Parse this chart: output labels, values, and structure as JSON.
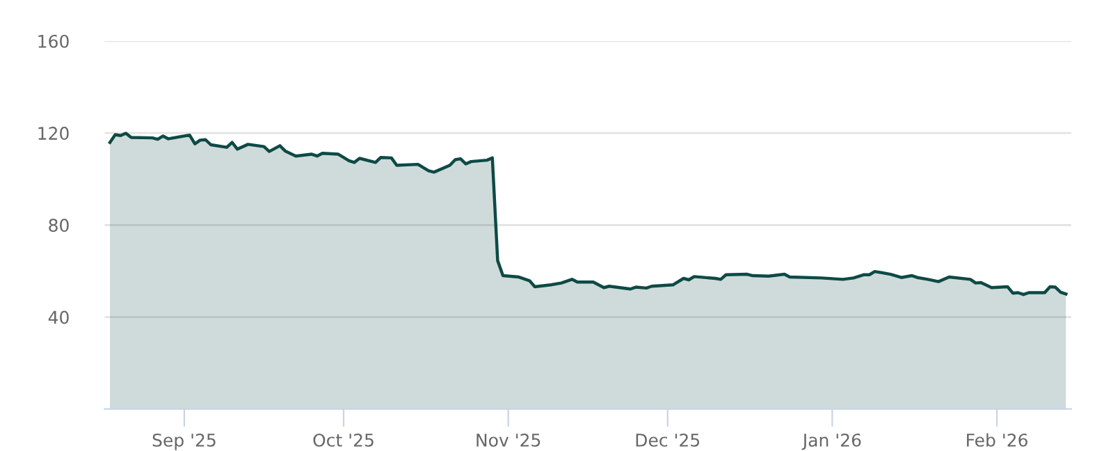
{
  "chart_data": {
    "type": "area",
    "x": [
      "2025-08-18",
      "2025-08-19",
      "2025-08-20",
      "2025-08-21",
      "2025-08-22",
      "2025-08-26",
      "2025-08-27",
      "2025-08-28",
      "2025-08-29",
      "2025-09-02",
      "2025-09-03",
      "2025-09-04",
      "2025-09-05",
      "2025-09-06",
      "2025-09-09",
      "2025-09-10",
      "2025-09-11",
      "2025-09-13",
      "2025-09-16",
      "2025-09-17",
      "2025-09-19",
      "2025-09-20",
      "2025-09-22",
      "2025-09-25",
      "2025-09-26",
      "2025-09-27",
      "2025-09-30",
      "2025-10-02",
      "2025-10-03",
      "2025-10-04",
      "2025-10-07",
      "2025-10-08",
      "2025-10-10",
      "2025-10-11",
      "2025-10-15",
      "2025-10-17",
      "2025-10-18",
      "2025-10-21",
      "2025-10-22",
      "2025-10-23",
      "2025-10-24",
      "2025-10-25",
      "2025-10-28",
      "2025-10-29",
      "2025-10-30",
      "2025-10-31",
      "2025-11-03",
      "2025-11-05",
      "2025-11-06",
      "2025-11-09",
      "2025-11-11",
      "2025-11-13",
      "2025-11-14",
      "2025-11-17",
      "2025-11-19",
      "2025-11-20",
      "2025-11-24",
      "2025-11-25",
      "2025-11-27",
      "2025-11-28",
      "2025-12-02",
      "2025-12-04",
      "2025-12-05",
      "2025-12-06",
      "2025-12-10",
      "2025-12-11",
      "2025-12-12",
      "2025-12-16",
      "2025-12-17",
      "2025-12-20",
      "2025-12-23",
      "2025-12-24",
      "2025-12-30",
      "2026-01-03",
      "2026-01-05",
      "2026-01-07",
      "2026-01-08",
      "2026-01-09",
      "2026-01-12",
      "2026-01-14",
      "2026-01-16",
      "2026-01-17",
      "2026-01-19",
      "2026-01-21",
      "2026-01-23",
      "2026-01-27",
      "2026-01-28",
      "2026-01-29",
      "2026-01-31",
      "2026-02-03",
      "2026-02-04",
      "2026-02-05",
      "2026-02-06",
      "2026-02-07",
      "2026-02-10",
      "2026-02-11",
      "2026-02-12",
      "2026-02-13",
      "2026-02-14"
    ],
    "series": [
      {
        "color": "#0d4a45",
        "values": [
          115.9,
          119.3,
          118.9,
          119.9,
          118.1,
          117.9,
          117.3,
          118.7,
          117.5,
          119.1,
          115.3,
          116.9,
          117.1,
          114.9,
          113.8,
          115.9,
          113.0,
          115.1,
          114.1,
          112.0,
          114.5,
          112.2,
          110.0,
          110.8,
          110.0,
          111.2,
          110.8,
          108.0,
          107.2,
          109.0,
          107.2,
          109.4,
          109.2,
          106.0,
          106.4,
          103.6,
          103.0,
          106.0,
          108.4,
          108.8,
          106.6,
          107.6,
          108.2,
          109.2,
          64.5,
          58.0,
          57.4,
          55.8,
          53.2,
          54.0,
          54.8,
          56.4,
          55.2,
          55.2,
          52.8,
          53.4,
          52.2,
          53.0,
          52.6,
          53.4,
          54.0,
          56.8,
          56.2,
          57.6,
          56.8,
          56.4,
          58.4,
          58.6,
          58.0,
          57.8,
          58.6,
          57.4,
          57.0,
          56.4,
          57.0,
          58.4,
          58.4,
          59.8,
          58.6,
          57.2,
          58.0,
          57.2,
          56.4,
          55.4,
          57.4,
          56.4,
          54.8,
          55.0,
          52.8,
          53.2,
          50.4,
          50.6,
          49.8,
          50.6,
          50.6,
          53.2,
          53.0,
          50.8,
          50.0
        ]
      }
    ],
    "xlim": [
      "2025-08-17",
      "2026-02-15"
    ],
    "xticks": [
      {
        "value": "2025-09-01",
        "label": "Sep '25"
      },
      {
        "value": "2025-10-01",
        "label": "Oct '25"
      },
      {
        "value": "2025-11-01",
        "label": "Nov '25"
      },
      {
        "value": "2025-12-01",
        "label": "Dec '25"
      },
      {
        "value": "2026-01-01",
        "label": "Jan '26"
      },
      {
        "value": "2026-02-01",
        "label": "Feb '26"
      }
    ],
    "ylim": [
      0,
      160
    ],
    "yticks": [
      40,
      80,
      120,
      160
    ],
    "grid": "y",
    "legend": false,
    "marker": "none",
    "line_style": "solid"
  }
}
